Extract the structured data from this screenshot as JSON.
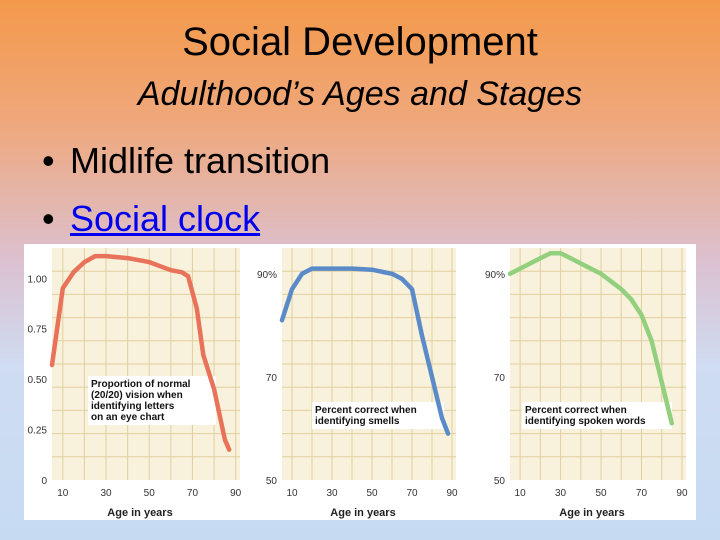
{
  "slide": {
    "title": "Social Development",
    "subtitle": "Adulthood’s Ages and Stages",
    "bullets": [
      {
        "text": "Midlife transition",
        "link": false
      },
      {
        "text": "Social clock",
        "link": true
      }
    ]
  },
  "colors": {
    "vision": "#e8735a",
    "smell": "#5b8ac8",
    "hearing": "#92d07e",
    "plot_bg": "#f8f1db",
    "grid": "#e2cf9f"
  },
  "chart_data": [
    {
      "type": "line",
      "caption": [
        "Proportion of normal",
        "(20/20) vision when",
        "identifying letters",
        "on an eye chart"
      ],
      "xlabel": "Age in years",
      "xticks": [
        "10",
        "30",
        "50",
        "70",
        "90"
      ],
      "yticks": [
        "1.00",
        "0.75",
        "0.50",
        "0.25",
        "0"
      ],
      "xlim": [
        5,
        92
      ],
      "ylim": [
        0,
        1.15
      ],
      "series": [
        {
          "color_key": "vision",
          "x": [
            5,
            10,
            15,
            20,
            25,
            30,
            40,
            50,
            60,
            65,
            68,
            72,
            75,
            80,
            85,
            87
          ],
          "y": [
            0.57,
            0.95,
            1.03,
            1.08,
            1.11,
            1.11,
            1.1,
            1.08,
            1.04,
            1.03,
            1.01,
            0.85,
            0.62,
            0.45,
            0.2,
            0.15
          ]
        }
      ]
    },
    {
      "type": "line",
      "caption": [
        "Percent correct when",
        "identifying smells"
      ],
      "xlabel": "Age in years",
      "xticks": [
        "10",
        "30",
        "50",
        "70",
        "90"
      ],
      "yticks": [
        "90%",
        "70",
        "50"
      ],
      "xlim": [
        5,
        92
      ],
      "ylim": [
        50,
        95
      ],
      "series": [
        {
          "color_key": "smell",
          "x": [
            5,
            10,
            15,
            20,
            30,
            40,
            50,
            60,
            65,
            70,
            75,
            80,
            85,
            88
          ],
          "y": [
            81,
            87,
            90,
            91,
            91,
            91,
            90.8,
            90,
            89,
            87,
            78,
            70,
            62,
            59
          ]
        }
      ]
    },
    {
      "type": "line",
      "caption": [
        "Percent correct when",
        "identifying spoken words"
      ],
      "xlabel": "Age in years",
      "xticks": [
        "10",
        "30",
        "50",
        "70",
        "90"
      ],
      "yticks": [
        "90%",
        "70",
        "50"
      ],
      "xlim": [
        5,
        92
      ],
      "ylim": [
        50,
        95
      ],
      "series": [
        {
          "color_key": "hearing",
          "x": [
            5,
            10,
            20,
            25,
            30,
            35,
            40,
            50,
            60,
            65,
            70,
            75,
            80,
            85
          ],
          "y": [
            90,
            91,
            93,
            94,
            94,
            93,
            92,
            90,
            87,
            85,
            82,
            77,
            69,
            61
          ]
        }
      ]
    }
  ]
}
